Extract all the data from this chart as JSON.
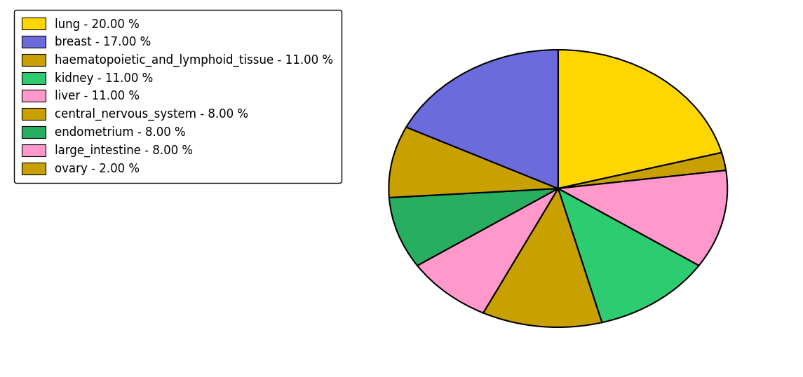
{
  "pie_values": [
    20,
    2,
    11,
    11,
    11,
    8,
    8,
    8,
    17
  ],
  "pie_colors": [
    "#FFD700",
    "#C8A000",
    "#FF99CC",
    "#2ECC71",
    "#C8A000",
    "#FF99CC",
    "#27AE60",
    "#C8A000",
    "#6B6BDB"
  ],
  "legend_labels": [
    "lung - 20.00 %",
    "breast - 17.00 %",
    "haematopoietic_and_lymphoid_tissue - 11.00 %",
    "kidney - 11.00 %",
    "liver - 11.00 %",
    "central_nervous_system - 8.00 %",
    "endometrium - 8.00 %",
    "large_intestine - 8.00 %",
    "ovary - 2.00 %"
  ],
  "legend_colors": [
    "#FFD700",
    "#6B6BDB",
    "#C8A000",
    "#2ECC71",
    "#FF99CC",
    "#C8A000",
    "#27AE60",
    "#FF99CC",
    "#C8A000"
  ],
  "startangle": 90,
  "counterclock": false,
  "background_color": "#ffffff",
  "legend_fontsize": 12,
  "figsize": [
    11.45,
    5.38
  ],
  "dpi": 100
}
